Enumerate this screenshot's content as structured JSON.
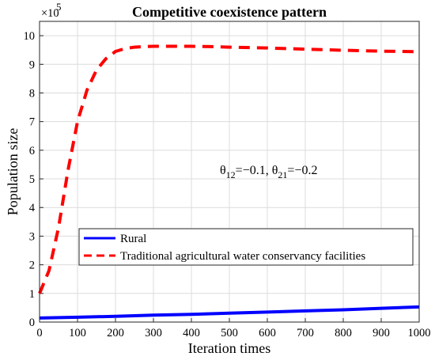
{
  "chart_data": {
    "type": "line",
    "title": "Competitive coexistence pattern",
    "xlabel": "Iteration times",
    "ylabel": "Population size",
    "y_multiplier_label": "×10",
    "y_multiplier_exponent": "5",
    "xlim": [
      0,
      1000
    ],
    "ylim": [
      0,
      10.5
    ],
    "y_scale": 100000,
    "x_ticks": [
      0,
      100,
      200,
      300,
      400,
      500,
      600,
      700,
      800,
      900,
      1000
    ],
    "y_ticks": [
      0,
      1,
      2,
      3,
      4,
      5,
      6,
      7,
      8,
      9,
      10
    ],
    "grid": true,
    "legend_position": "lower-left",
    "annotation": {
      "theta12_label": "θ",
      "theta12_sub": "12",
      "theta12_value": "=−0.1, ",
      "theta21_label": "θ",
      "theta21_sub": "21",
      "theta21_value": "=−0.2"
    },
    "series": [
      {
        "name": "Rural",
        "color": "#0000ff",
        "style": "solid",
        "x": [
          0,
          100,
          200,
          300,
          400,
          500,
          600,
          700,
          800,
          900,
          1000
        ],
        "y": [
          0.14,
          0.17,
          0.2,
          0.24,
          0.27,
          0.31,
          0.35,
          0.39,
          0.43,
          0.48,
          0.53
        ]
      },
      {
        "name": "Traditional agricultural water conservancy facilities",
        "color": "#ff0000",
        "style": "dashed",
        "x": [
          0,
          25,
          50,
          75,
          100,
          125,
          150,
          175,
          200,
          225,
          250,
          275,
          300,
          350,
          400,
          450,
          500,
          600,
          700,
          800,
          900,
          1000
        ],
        "y": [
          1.0,
          1.8,
          3.3,
          5.3,
          7.0,
          8.1,
          8.8,
          9.2,
          9.45,
          9.55,
          9.6,
          9.62,
          9.63,
          9.63,
          9.63,
          9.62,
          9.6,
          9.57,
          9.53,
          9.49,
          9.46,
          9.44
        ]
      }
    ]
  }
}
